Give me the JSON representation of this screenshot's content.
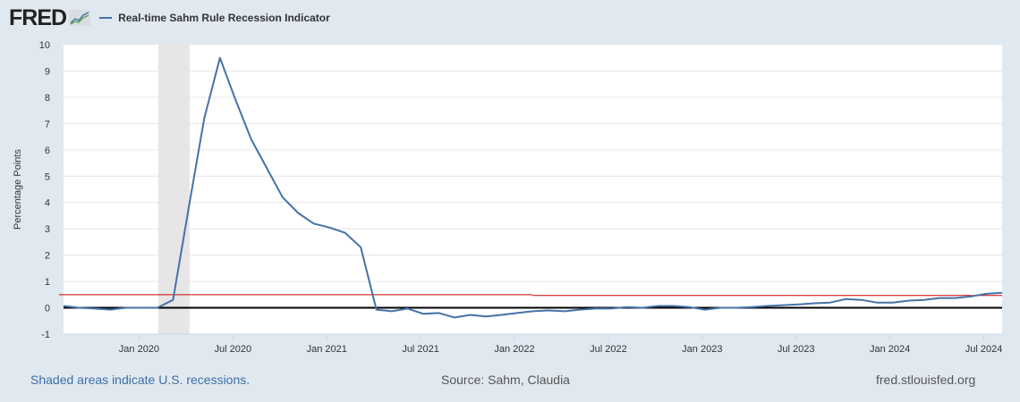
{
  "header": {
    "logo": "FRED",
    "logo_icon": "chart-line-icon",
    "legend_label": "Real-time Sahm Rule Recession Indicator",
    "series_color": "#4572a7"
  },
  "footer": {
    "recession_note": "Shaded areas indicate U.S. recessions.",
    "source": "Source: Sahm, Claudia",
    "site": "fred.stlouisfed.org"
  },
  "colors": {
    "series": "#4572a7",
    "threshold": "#cc0000",
    "zero_line": "#000000",
    "recession_shade": "#e6e6e6",
    "background": "#e1e9f0",
    "grid": "#e6e6e6"
  },
  "chart_data": {
    "type": "line",
    "title": "Real-time Sahm Rule Recession Indicator",
    "xlabel": "",
    "ylabel": "Percentage Points",
    "ylim": [
      -1,
      10
    ],
    "yticks": [
      -1,
      0,
      1,
      2,
      3,
      4,
      5,
      6,
      7,
      8,
      9,
      10
    ],
    "xtick_labels": [
      "Jan 2020",
      "Jul 2020",
      "Jan 2021",
      "Jul 2021",
      "Jan 2022",
      "Jul 2022",
      "Jan 2023",
      "Jul 2023",
      "Jan 2024",
      "Jul 2024"
    ],
    "xtick_month_index": [
      5,
      11,
      17,
      23,
      29,
      35,
      41,
      47,
      53,
      59
    ],
    "grid": true,
    "legend_position": "top-left",
    "x": [
      "2019-08",
      "2019-09",
      "2019-10",
      "2019-11",
      "2019-12",
      "2020-01",
      "2020-02",
      "2020-03",
      "2020-04",
      "2020-05",
      "2020-06",
      "2020-07",
      "2020-08",
      "2020-09",
      "2020-10",
      "2020-11",
      "2020-12",
      "2021-01",
      "2021-02",
      "2021-03",
      "2021-04",
      "2021-05",
      "2021-06",
      "2021-07",
      "2021-08",
      "2021-09",
      "2021-10",
      "2021-11",
      "2021-12",
      "2022-01",
      "2022-02",
      "2022-03",
      "2022-04",
      "2022-05",
      "2022-06",
      "2022-07",
      "2022-08",
      "2022-09",
      "2022-10",
      "2022-11",
      "2022-12",
      "2023-01",
      "2023-02",
      "2023-03",
      "2023-04",
      "2023-05",
      "2023-06",
      "2023-07",
      "2023-08",
      "2023-09",
      "2023-10",
      "2023-11",
      "2023-12",
      "2024-01",
      "2024-02",
      "2024-03",
      "2024-04",
      "2024-05",
      "2024-06",
      "2024-07",
      "2024-08"
    ],
    "series": [
      {
        "name": "Real-time Sahm Rule Recession Indicator",
        "values": [
          0.07,
          0.0,
          -0.03,
          -0.07,
          0.0,
          0.0,
          0.0,
          0.3,
          3.8,
          7.2,
          9.5,
          7.9,
          6.4,
          5.3,
          4.2,
          3.6,
          3.2,
          3.05,
          2.85,
          2.3,
          -0.07,
          -0.13,
          -0.03,
          -0.23,
          -0.2,
          -0.37,
          -0.27,
          -0.33,
          -0.27,
          -0.2,
          -0.13,
          -0.1,
          -0.13,
          -0.07,
          -0.03,
          -0.03,
          0.03,
          0.0,
          0.07,
          0.07,
          0.03,
          -0.07,
          0.0,
          0.0,
          0.03,
          0.07,
          0.1,
          0.13,
          0.17,
          0.2,
          0.33,
          0.3,
          0.2,
          0.2,
          0.27,
          0.3,
          0.37,
          0.37,
          0.43,
          0.53,
          0.57
        ]
      }
    ],
    "reference_lines": [
      {
        "name": "Threshold",
        "value_before_2022_02": 0.5,
        "value_after": 0.47,
        "color": "#cc0000"
      },
      {
        "name": "Zero",
        "value": 0,
        "color": "#000000"
      }
    ],
    "recession_shading": [
      {
        "start": "2020-02",
        "end": "2020-04"
      }
    ]
  }
}
